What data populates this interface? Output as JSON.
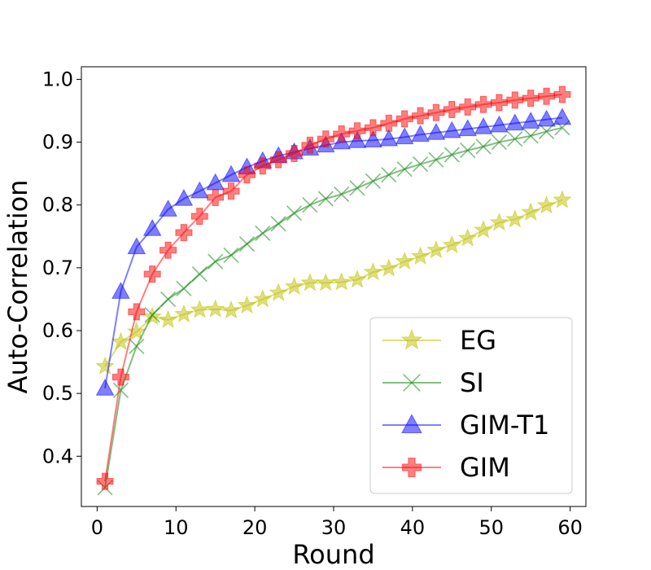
{
  "chart_data": {
    "type": "line",
    "title": "",
    "xlabel": "Round",
    "ylabel": "Auto-Correlation",
    "xlim": [
      -2,
      62
    ],
    "ylim": [
      0.32,
      1.02
    ],
    "xticks": [
      0,
      10,
      20,
      30,
      40,
      50,
      60
    ],
    "yticks": [
      0.4,
      0.5,
      0.6,
      0.7,
      0.8,
      0.9,
      1.0
    ],
    "xtick_labels": [
      "0",
      "10",
      "20",
      "30",
      "40",
      "50",
      "60"
    ],
    "ytick_labels": [
      "0.4",
      "0.5",
      "0.6",
      "0.7",
      "0.8",
      "0.9",
      "1.0"
    ],
    "grid": false,
    "legend_position": "bottom-right",
    "x": [
      1,
      3,
      5,
      7,
      9,
      11,
      13,
      15,
      17,
      19,
      21,
      23,
      25,
      27,
      29,
      31,
      33,
      35,
      37,
      39,
      41,
      43,
      45,
      47,
      49,
      51,
      53,
      55,
      57,
      59
    ],
    "series": [
      {
        "name": "EG",
        "color": "#bfbf00",
        "marker": "star",
        "values": [
          0.543,
          0.582,
          0.598,
          0.622,
          0.617,
          0.626,
          0.633,
          0.634,
          0.632,
          0.64,
          0.65,
          0.66,
          0.67,
          0.676,
          0.676,
          0.677,
          0.681,
          0.693,
          0.699,
          0.71,
          0.718,
          0.728,
          0.736,
          0.747,
          0.76,
          0.772,
          0.777,
          0.788,
          0.799,
          0.808
        ]
      },
      {
        "name": "SI",
        "color": "#008000",
        "marker": "x",
        "values": [
          0.35,
          0.505,
          0.575,
          0.625,
          0.65,
          0.667,
          0.69,
          0.71,
          0.72,
          0.738,
          0.755,
          0.77,
          0.787,
          0.8,
          0.81,
          0.817,
          0.827,
          0.838,
          0.848,
          0.857,
          0.865,
          0.872,
          0.88,
          0.887,
          0.893,
          0.9,
          0.905,
          0.91,
          0.917,
          0.923
        ]
      },
      {
        "name": "GIM-T1",
        "color": "#0000ff",
        "marker": "triangle",
        "values": [
          0.508,
          0.662,
          0.733,
          0.762,
          0.793,
          0.81,
          0.822,
          0.835,
          0.848,
          0.86,
          0.87,
          0.878,
          0.884,
          0.89,
          0.895,
          0.9,
          0.902,
          0.903,
          0.905,
          0.908,
          0.912,
          0.915,
          0.918,
          0.921,
          0.924,
          0.927,
          0.93,
          0.933,
          0.936,
          0.939
        ]
      },
      {
        "name": "GIM",
        "color": "#ff0000",
        "marker": "plus",
        "values": [
          0.36,
          0.526,
          0.63,
          0.69,
          0.728,
          0.756,
          0.782,
          0.812,
          0.822,
          0.848,
          0.862,
          0.872,
          0.882,
          0.895,
          0.905,
          0.913,
          0.918,
          0.923,
          0.93,
          0.937,
          0.942,
          0.947,
          0.952,
          0.956,
          0.96,
          0.963,
          0.967,
          0.97,
          0.973,
          0.976
        ]
      }
    ]
  }
}
